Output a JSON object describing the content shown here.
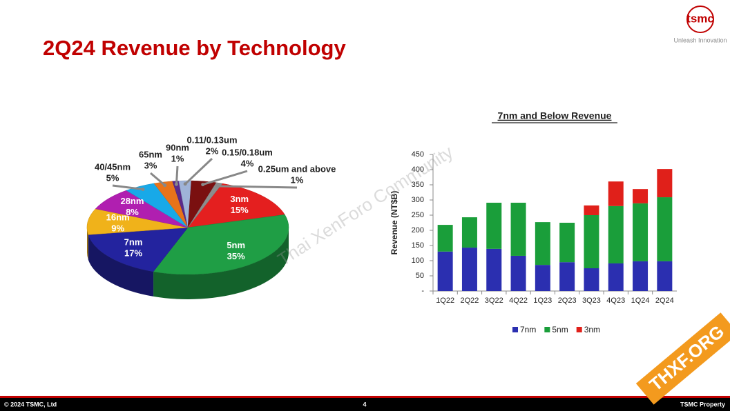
{
  "header": {
    "title": "2Q24 Revenue by Technology",
    "logo": "tsmc",
    "tagline": "Unleash Innovation"
  },
  "chart_data": [
    {
      "type": "pie",
      "categories": [
        "3nm",
        "5nm",
        "7nm",
        "16nm",
        "28nm",
        "40/45nm",
        "65nm",
        "90nm",
        "0.11/0.13um",
        "0.15/0.18um",
        "0.25um and above"
      ],
      "values": [
        15,
        35,
        17,
        9,
        8,
        5,
        3,
        1,
        2,
        4,
        1
      ],
      "value_labels": [
        "15%",
        "35%",
        "17%",
        "9%",
        "8%",
        "5%",
        "3%",
        "1%",
        "2%",
        "4%",
        "1%"
      ],
      "colors": [
        "#e41f1f",
        "#1f9e45",
        "#23239e",
        "#f0b21a",
        "#b01fb0",
        "#18a9e8",
        "#e8731a",
        "#5a2a8a",
        "#9fb3d8",
        "#7a1010",
        "#8c8c8c"
      ]
    },
    {
      "type": "bar",
      "stacked": true,
      "title": "7nm and Below Revenue",
      "ylabel": "Revenue (NT$B)",
      "categories": [
        "1Q22",
        "2Q22",
        "3Q22",
        "4Q22",
        "1Q23",
        "2Q23",
        "3Q23",
        "4Q23",
        "1Q24",
        "2Q24"
      ],
      "series": [
        {
          "name": "7nm",
          "color": "#2b2fb0",
          "values": [
            130,
            143,
            139,
            116,
            86,
            95,
            75,
            91,
            98,
            98
          ]
        },
        {
          "name": "5nm",
          "color": "#1a9e3a",
          "values": [
            88,
            100,
            152,
            175,
            141,
            130,
            175,
            189,
            191,
            211
          ]
        },
        {
          "name": "3nm",
          "color": "#e0201a",
          "values": [
            0,
            0,
            0,
            0,
            0,
            0,
            32,
            81,
            47,
            93
          ]
        }
      ],
      "ylim": [
        0,
        450
      ],
      "yticks": [
        {
          "value": 0,
          "label": "-"
        },
        50,
        100,
        150,
        200,
        250,
        300,
        350,
        400,
        450
      ],
      "legend": "bottom"
    }
  ],
  "footer": {
    "copyright": "©  2024 TSMC, Ltd",
    "page": "4",
    "property": "TSMC Property"
  },
  "watermark": {
    "text": "Thai XenForo Community",
    "badge": "THXF.ORG"
  }
}
